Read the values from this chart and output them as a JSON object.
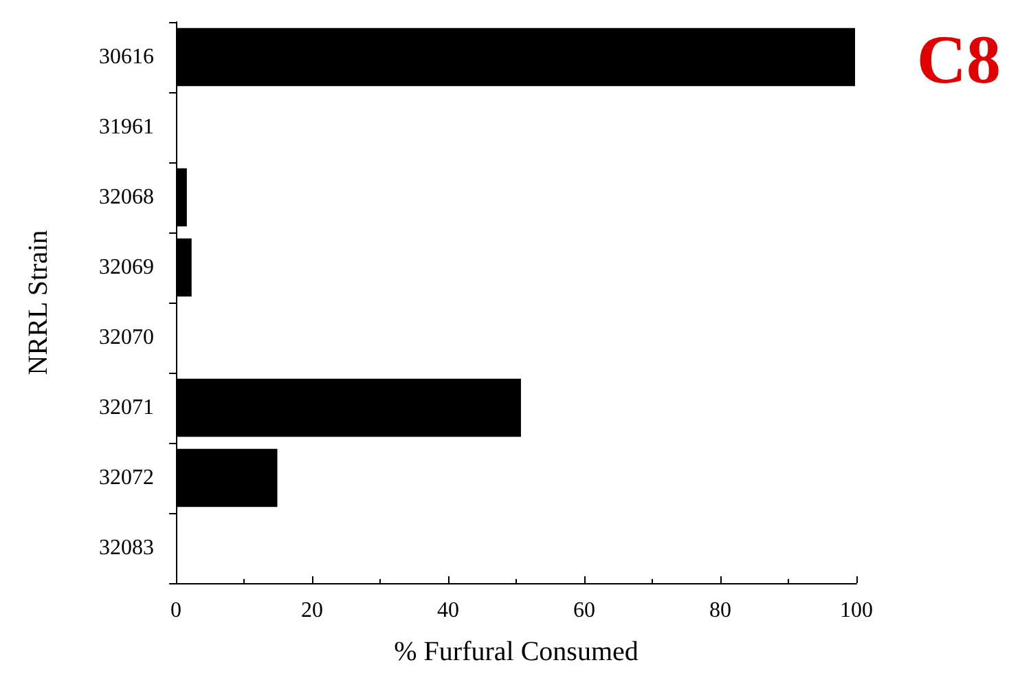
{
  "chart_data": {
    "type": "bar",
    "orientation": "horizontal",
    "xlabel": "% Furfural Consumed",
    "ylabel": "NRRL Strain",
    "categories": [
      "30616",
      "31961",
      "32068",
      "32069",
      "32070",
      "32071",
      "32072",
      "32083"
    ],
    "values": [
      99.8,
      0,
      1.6,
      2.3,
      0,
      50.7,
      14.9,
      0
    ],
    "color": "#000000",
    "xlim": [
      0,
      100
    ],
    "xticks": [
      0,
      20,
      40,
      60,
      80,
      100
    ],
    "grid": false,
    "annotations": [
      "C8"
    ]
  }
}
